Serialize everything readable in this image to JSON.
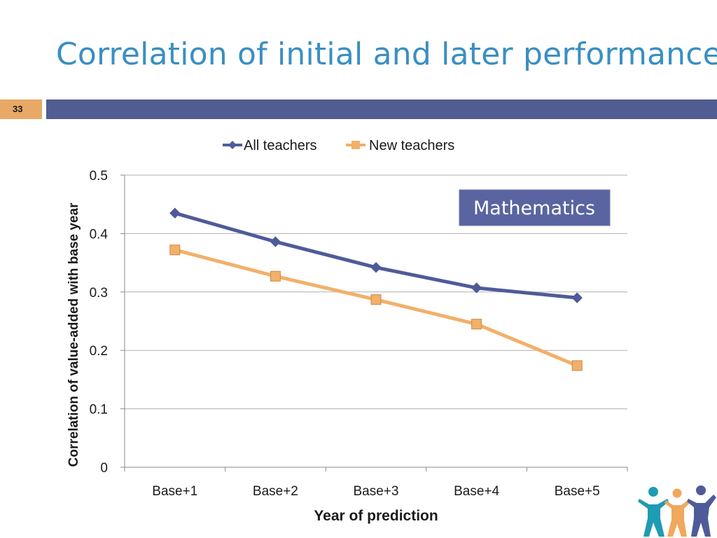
{
  "slide": {
    "title": "Correlation of initial and later performance",
    "number": "33"
  },
  "chart_data": {
    "type": "line",
    "title": "",
    "xlabel": "Year of prediction",
    "ylabel": "Correlation of value-added with base year",
    "categories": [
      "Base+1",
      "Base+2",
      "Base+3",
      "Base+4",
      "Base+5"
    ],
    "ylim": [
      0,
      0.5
    ],
    "yticks": [
      "0",
      "0.1",
      "0.2",
      "0.3",
      "0.4",
      "0.5"
    ],
    "grid": true,
    "legend_position": "top",
    "annotation": "Mathematics",
    "series": [
      {
        "name": "All teachers",
        "values": [
          0.435,
          0.386,
          0.342,
          0.307,
          0.29
        ],
        "color": "#4f5b99",
        "marker": "diamond"
      },
      {
        "name": "New teachers",
        "values": [
          0.372,
          0.327,
          0.287,
          0.245,
          0.174
        ],
        "color": "#f2b06a",
        "marker": "square"
      }
    ]
  },
  "colors": {
    "title": "#3a8fc1",
    "bar": "#515c92",
    "slide_number_bg": "#e8a866",
    "annotation_bg": "#5a64a0",
    "logo_teal": "#1f9bb3",
    "logo_orange": "#f0a85c",
    "logo_purple": "#4f5b99"
  },
  "logo": {
    "icon": "people-group-logo-icon"
  }
}
